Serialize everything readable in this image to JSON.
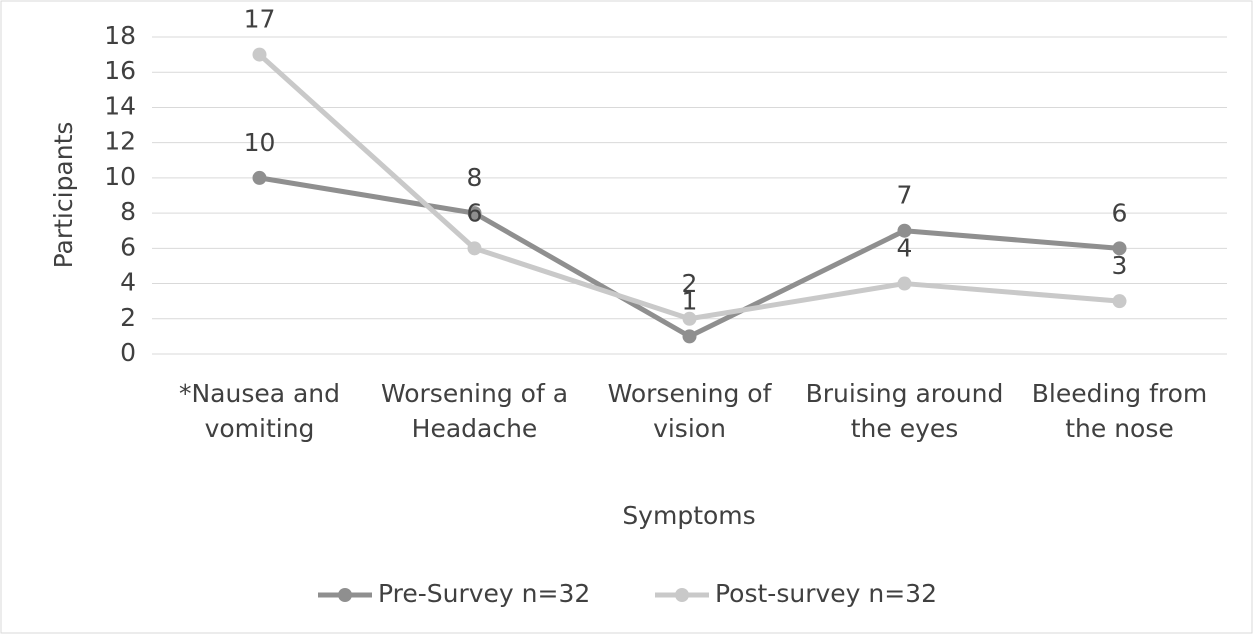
{
  "chart_data": {
    "type": "line",
    "x_label": "Symptoms",
    "y_label": "Participants",
    "categories": [
      "*Nausea and vomiting",
      "Worsening of a Headache",
      "Worsening of vision",
      "Bruising around the eyes",
      "Bleeding from the nose"
    ],
    "series": [
      {
        "name": "Pre-Survey n=32",
        "color": "#8f8f8f",
        "values": [
          10,
          8,
          1,
          7,
          6
        ]
      },
      {
        "name": "Post-survey n=32",
        "color": "#c9c9c9",
        "values": [
          17,
          6,
          2,
          4,
          3
        ]
      }
    ],
    "ylim": [
      0,
      18
    ],
    "yticks": [
      0,
      2,
      4,
      6,
      8,
      10,
      12,
      14,
      16,
      18
    ],
    "grid": true,
    "legend": "bottom"
  }
}
